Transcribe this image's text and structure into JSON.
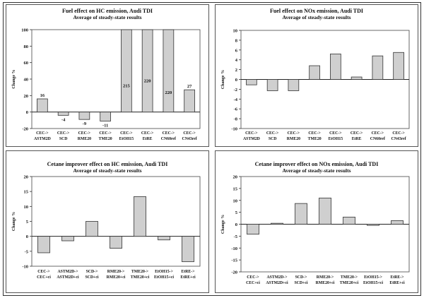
{
  "colors": {
    "bar_fill": "#cfcfcf",
    "frame": "#333333"
  },
  "chart_data": [
    {
      "id": "hc_fuel",
      "type": "bar",
      "title": "Fuel effect on HC emission, Audi TDI",
      "subtitle": "Average of steady-state results",
      "ylabel": "Change %",
      "ylim": [
        -20,
        100
      ],
      "yticks": [
        -20,
        0,
        20,
        40,
        60,
        80,
        100
      ],
      "categories": [
        [
          "CEC->",
          "ASTM2D"
        ],
        [
          "CEC->",
          "SCD"
        ],
        [
          "CEC->",
          "RME20"
        ],
        [
          "CEC->",
          "TME20"
        ],
        [
          "CEC->",
          "EtOH15"
        ],
        [
          "CEC->",
          "EtRE"
        ],
        [
          "CEC->",
          "CN60ref"
        ],
        [
          "CEC->",
          "CN43ref"
        ]
      ],
      "values": [
        16,
        -4,
        -9,
        -11,
        215,
        220,
        220,
        27
      ],
      "data_labels": [
        "16",
        "-4",
        "-9",
        "-11",
        "215",
        "220",
        "220",
        "27"
      ]
    },
    {
      "id": "nox_fuel",
      "type": "bar",
      "title": "Fuel effect on NOx emission, Audi TDI",
      "subtitle": "Average of steady-state results",
      "ylabel": "Change %",
      "ylim": [
        -10,
        10
      ],
      "yticks": [
        -10,
        -8,
        -6,
        -4,
        -2,
        0,
        2,
        4,
        6,
        8,
        10
      ],
      "categories": [
        [
          "CEC->",
          "ASTM2D"
        ],
        [
          "CEC->",
          "SCD"
        ],
        [
          "CEC->",
          "RME20"
        ],
        [
          "CEC->",
          "TME20"
        ],
        [
          "CEC->",
          "EtOH15"
        ],
        [
          "CEC->",
          "EtRE"
        ],
        [
          "CEC->",
          "CN60ref"
        ],
        [
          "CEC->",
          "CN43ref"
        ]
      ],
      "values": [
        -1.1,
        -2.3,
        -2.3,
        2.8,
        5.2,
        0.5,
        4.8,
        5.5
      ]
    },
    {
      "id": "hc_cetane",
      "type": "bar",
      "title": "Cetane improver effect on HC emission, Audi TDI",
      "subtitle": "Average of steady-state results",
      "ylabel": "Change %",
      "ylim": [
        -10,
        20
      ],
      "yticks": [
        -10,
        -5,
        0,
        5,
        10,
        15,
        20
      ],
      "categories": [
        [
          "CEC->",
          "CEC+ci"
        ],
        [
          "ASTM2D->",
          "ASTM2D+ci"
        ],
        [
          "SCD->",
          "SCD+ci"
        ],
        [
          "RME20->",
          "RME20+ci"
        ],
        [
          "TME20->",
          "TME20+ci"
        ],
        [
          "EtOH15->",
          "EtOH15+ci"
        ],
        [
          "EtRE->",
          "EtRE+ci"
        ]
      ],
      "values": [
        -5.5,
        -1.5,
        5,
        -4,
        13.3,
        -1.2,
        -8.5
      ]
    },
    {
      "id": "nox_cetane",
      "type": "bar",
      "title": "Cetane improver effect on NOx emission, Audi TDI",
      "subtitle": "Average of steady-state results",
      "ylabel": "Change %",
      "ylim": [
        -20,
        20
      ],
      "yticks": [
        -20,
        -15,
        -10,
        -5,
        0,
        5,
        10,
        15,
        20
      ],
      "categories": [
        [
          "CEC->",
          "CEC+ci"
        ],
        [
          "ASTM2D->",
          "ASTM2D+ci"
        ],
        [
          "SCD->",
          "SCD+ci"
        ],
        [
          "RME20->",
          "RME20+ci"
        ],
        [
          "TME20->",
          "TME20+ci"
        ],
        [
          "EtOH15->",
          "EtOH15+ci"
        ],
        [
          "EtRE->",
          "EtRE+ci"
        ]
      ],
      "values": [
        -4.2,
        0.4,
        8.7,
        11,
        3,
        -0.5,
        1.5
      ]
    }
  ]
}
